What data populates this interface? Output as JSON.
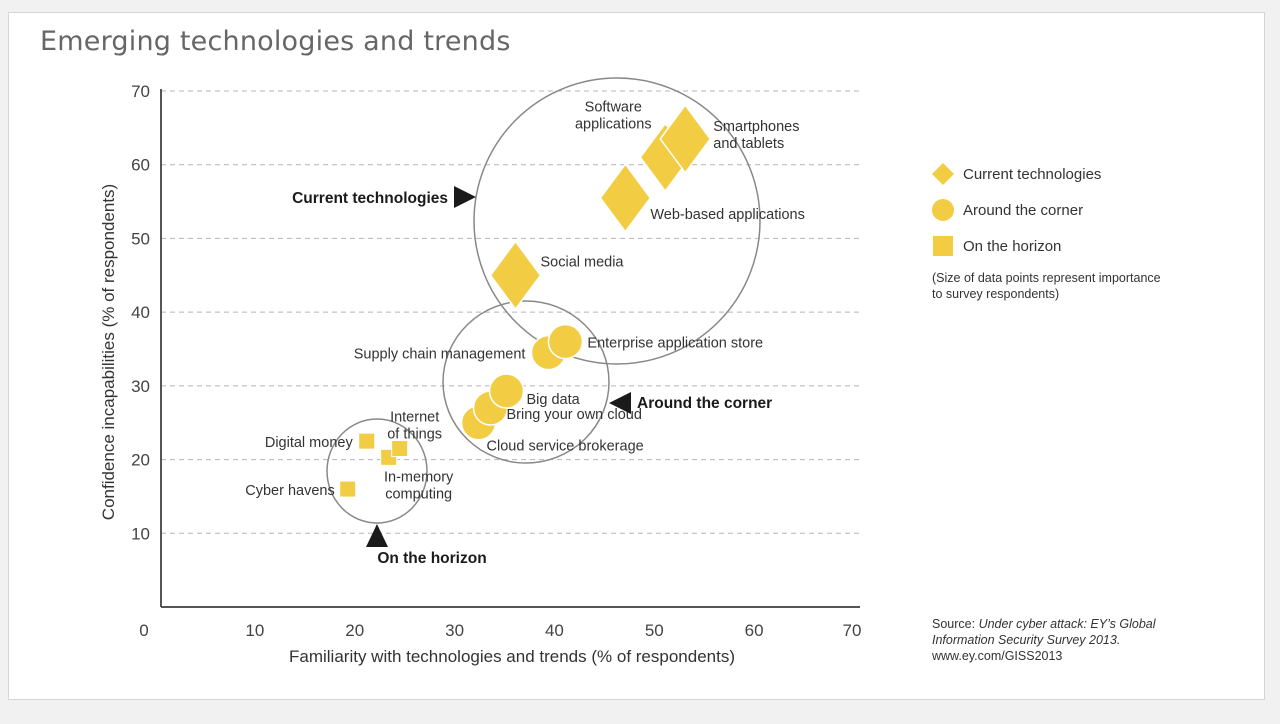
{
  "title": "Emerging technologies and trends",
  "legend": {
    "items": [
      {
        "label": "Current technologies",
        "shape": "diamond"
      },
      {
        "label": "Around the corner",
        "shape": "circle"
      },
      {
        "label": "On the horizon",
        "shape": "square"
      }
    ],
    "note": "(Size of data points represent importance to survey respondents)"
  },
  "source": {
    "prefix": "Source: ",
    "italic": "Under cyber attack: EY’s Global Information Security Survey 2013.",
    "url": "www.ey.com/GISS2013"
  },
  "colors": {
    "marker": "#f2cd44",
    "grid": "#b5b5b5",
    "axis": "#555555",
    "callout": "#1a1a1a"
  },
  "chart_data": {
    "type": "scatter",
    "title": "Emerging technologies and trends",
    "xlabel": "Familiarity with technologies and trends (% of respondents)",
    "ylabel": "Confidence incapabilities (% of respondents)",
    "xlim": [
      0,
      70
    ],
    "ylim": [
      0,
      70
    ],
    "xticks": [
      0,
      10,
      20,
      30,
      40,
      50,
      60,
      70
    ],
    "yticks": [
      10,
      20,
      30,
      40,
      50,
      60,
      70
    ],
    "grid": "horizontal dashed",
    "legend_position": "right",
    "series": [
      {
        "name": "Current technologies",
        "shape": "diamond",
        "points": [
          {
            "label": "Smartphones and tablets",
            "x": 52.5,
            "y": 63.5,
            "size": "large"
          },
          {
            "label": "Software applications",
            "x": 50.5,
            "y": 61,
            "size": "large"
          },
          {
            "label": "Web-based applications",
            "x": 46.5,
            "y": 55.5,
            "size": "large"
          },
          {
            "label": "Social media",
            "x": 35.5,
            "y": 45,
            "size": "large"
          }
        ]
      },
      {
        "name": "Around the corner",
        "shape": "circle",
        "points": [
          {
            "label": "Enterprise application store",
            "x": 40.5,
            "y": 36,
            "size": "medium"
          },
          {
            "label": "Supply chain management",
            "x": 38.8,
            "y": 34.5,
            "size": "medium"
          },
          {
            "label": "Big data",
            "x": 34.6,
            "y": 29.3,
            "size": "medium"
          },
          {
            "label": "Bring your own cloud",
            "x": 33,
            "y": 27,
            "size": "medium"
          },
          {
            "label": "Cloud service brokerage",
            "x": 31.8,
            "y": 25,
            "size": "medium"
          }
        ]
      },
      {
        "name": "On the horizon",
        "shape": "square",
        "points": [
          {
            "label": "Digital money",
            "x": 20.6,
            "y": 22.5,
            "size": "small"
          },
          {
            "label": "Internet of things",
            "x": 23.9,
            "y": 21.5,
            "size": "small"
          },
          {
            "label": "In-memory computing",
            "x": 22.8,
            "y": 20.3,
            "size": "small"
          },
          {
            "label": "Cyber havens",
            "x": 18.7,
            "y": 16,
            "size": "small"
          }
        ]
      }
    ],
    "groups": [
      {
        "label": "Current technologies",
        "arrow": "right"
      },
      {
        "label": "Around the corner",
        "arrow": "left"
      },
      {
        "label": "On the horizon",
        "arrow": "up"
      }
    ]
  }
}
